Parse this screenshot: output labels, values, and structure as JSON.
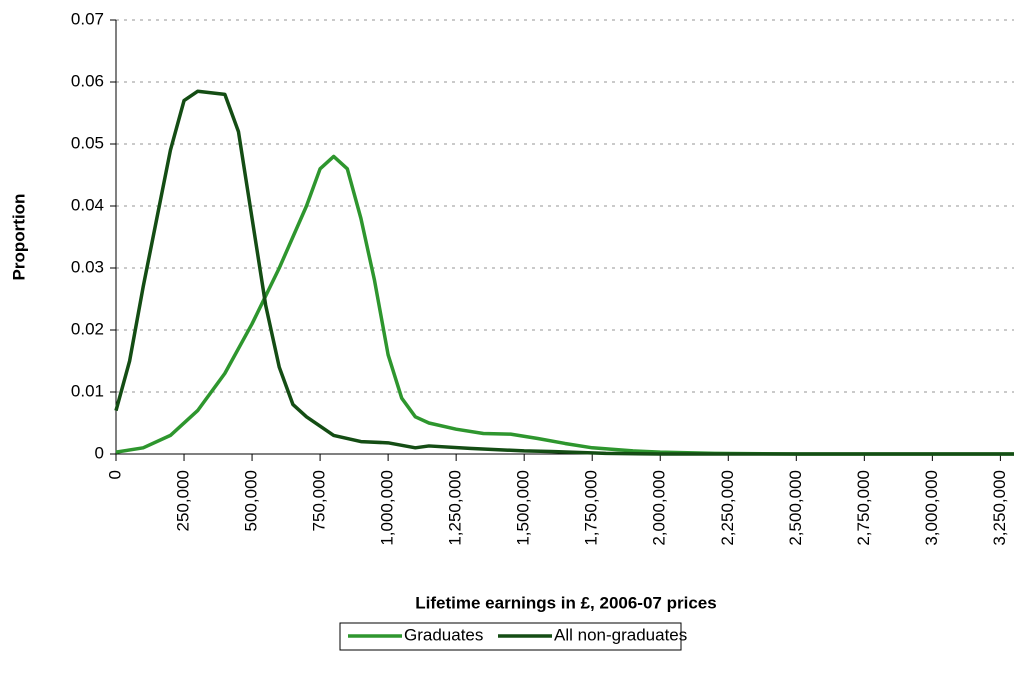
{
  "chart_data": {
    "type": "line",
    "xlabel": "Lifetime earnings in £, 2006-07 prices",
    "ylabel": "Proportion",
    "xlim": [
      0,
      3300000
    ],
    "ylim": [
      0,
      0.07
    ],
    "xticks": [
      0,
      {
        "value": 250000,
        "label": "250,000"
      },
      {
        "value": 500000,
        "label": "500,000"
      },
      {
        "value": 750000,
        "label": "750,000"
      },
      {
        "value": 1000000,
        "label": "1,000,000"
      },
      {
        "value": 1250000,
        "label": "1,250,000"
      },
      {
        "value": 1500000,
        "label": "1,500,000"
      },
      {
        "value": 1750000,
        "label": "1,750,000"
      },
      {
        "value": 2000000,
        "label": "2,000,000"
      },
      {
        "value": 2250000,
        "label": "2,250,000"
      },
      {
        "value": 2500000,
        "label": "2,500,000"
      },
      {
        "value": 2750000,
        "label": "2,750,000"
      },
      {
        "value": 3000000,
        "label": "3,000,000"
      },
      {
        "value": 3250000,
        "label": "3,250,000"
      }
    ],
    "yticks": [
      0,
      0.01,
      0.02,
      0.03,
      0.04,
      0.05,
      0.06,
      0.07
    ],
    "grid": true,
    "legend": "bottom",
    "series": [
      {
        "name": "Graduates",
        "color": "#2e962e",
        "x": [
          0,
          100000,
          200000,
          300000,
          400000,
          500000,
          600000,
          700000,
          750000,
          800000,
          850000,
          900000,
          950000,
          1000000,
          1050000,
          1100000,
          1150000,
          1250000,
          1350000,
          1450000,
          1550000,
          1650000,
          1750000,
          1900000,
          2000000,
          2200000,
          2500000,
          3300000
        ],
        "values": [
          0.0003,
          0.001,
          0.003,
          0.007,
          0.013,
          0.021,
          0.03,
          0.04,
          0.046,
          0.048,
          0.046,
          0.038,
          0.028,
          0.016,
          0.009,
          0.006,
          0.005,
          0.004,
          0.0033,
          0.0032,
          0.0025,
          0.0017,
          0.001,
          0.0005,
          0.0003,
          0.0001,
          0,
          0
        ]
      },
      {
        "name": "All non-graduates",
        "color": "#144d14",
        "x": [
          0,
          50000,
          100000,
          150000,
          200000,
          250000,
          300000,
          400000,
          450000,
          500000,
          550000,
          600000,
          650000,
          700000,
          800000,
          900000,
          1000000,
          1100000,
          1150000,
          1300000,
          1500000,
          1600000,
          1800000,
          2000000,
          3300000
        ],
        "values": [
          0.007,
          0.015,
          0.027,
          0.038,
          0.049,
          0.057,
          0.0585,
          0.058,
          0.052,
          0.038,
          0.024,
          0.014,
          0.008,
          0.006,
          0.003,
          0.002,
          0.0018,
          0.001,
          0.0013,
          0.0009,
          0.0005,
          0.0004,
          0.0001,
          0,
          0
        ]
      }
    ]
  }
}
